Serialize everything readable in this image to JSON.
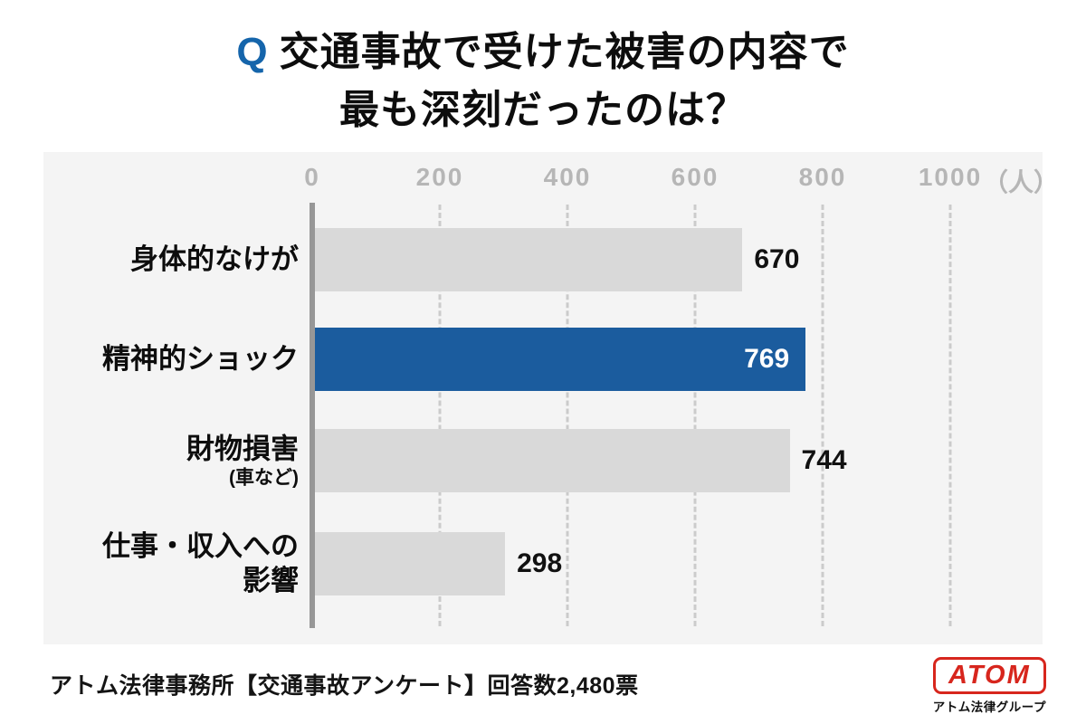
{
  "title": {
    "q": "Q",
    "line1": "交通事故で受けた被害の内容で",
    "line2": "最も深刻だったのは？"
  },
  "chart_data": {
    "type": "bar",
    "orientation": "horizontal",
    "title": "交通事故で受けた被害の内容で最も深刻だったのは？",
    "categories": [
      {
        "lines": [
          "身体的なけが"
        ]
      },
      {
        "lines": [
          "精神的ショック"
        ]
      },
      {
        "lines": [
          "財物損害"
        ],
        "sub": "(車など)"
      },
      {
        "lines": [
          "仕事・収入への",
          "影響"
        ]
      }
    ],
    "values": [
      670,
      769,
      744,
      298
    ],
    "highlight_index": 1,
    "xlim": [
      0,
      1000
    ],
    "xticks": [
      "0",
      "200",
      "400",
      "600",
      "800",
      "1000"
    ],
    "x_unit_suffix": "（人）",
    "grid": "dashed-vertical",
    "legend": "none",
    "colors": {
      "bar": "#d9d9d9",
      "highlight": "#1b5c9e",
      "accent": "#1565ab",
      "panel_bg": "#f4f4f4",
      "tick_text": "#b6b6b6",
      "grid": "#cbcbcb",
      "axis": "#979797"
    }
  },
  "footer": {
    "source": "アトム法律事務所【交通事故アンケート】回答数2,480票",
    "logo": {
      "text": "ATOM",
      "subtext": "アトム法律グループ",
      "color": "#d7261d"
    }
  }
}
